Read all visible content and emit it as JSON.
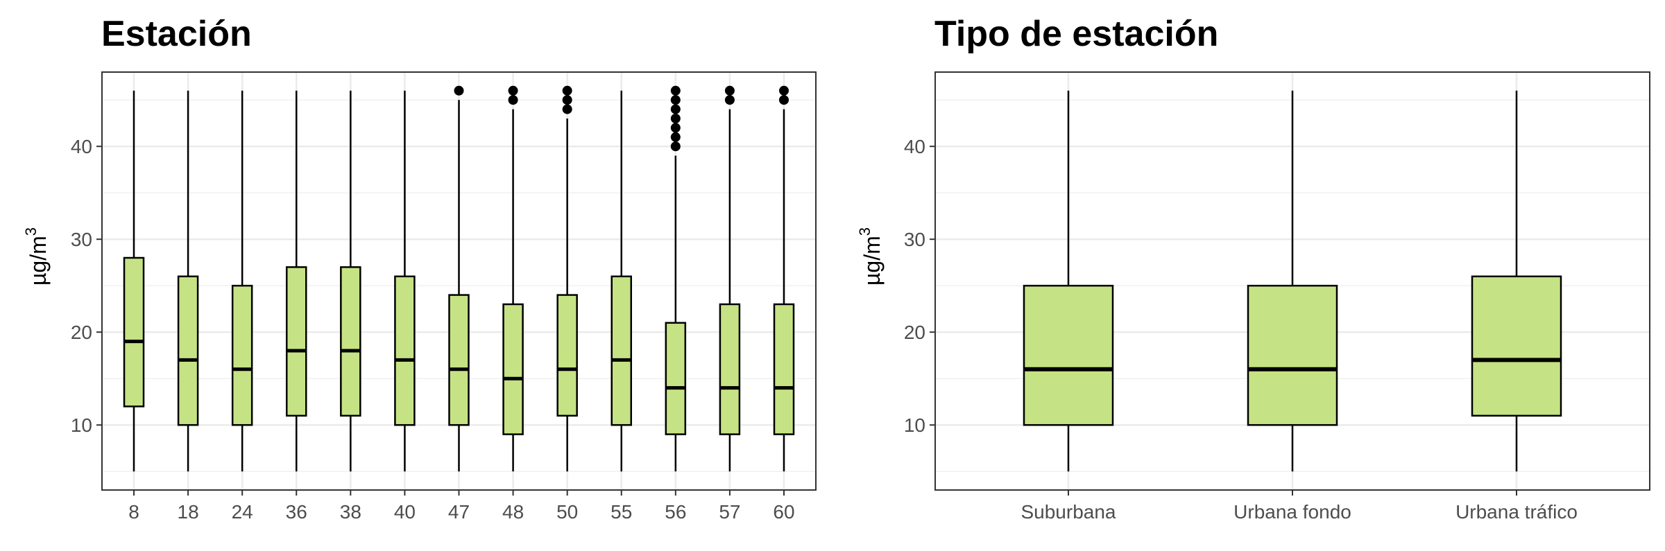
{
  "chart_data": [
    {
      "type": "boxplot",
      "title": "Estación",
      "xlabel": "",
      "ylabel": "µg/m",
      "ylabel_superscript": "3",
      "ylim": [
        3,
        48
      ],
      "yticks": [
        10,
        20,
        30,
        40
      ],
      "grid": true,
      "fill_color": "#c5e384",
      "categories": [
        "8",
        "18",
        "24",
        "36",
        "38",
        "40",
        "47",
        "48",
        "50",
        "55",
        "56",
        "57",
        "60"
      ],
      "boxes": [
        {
          "min": 5,
          "q1": 12,
          "median": 19,
          "q3": 28,
          "max": 46,
          "outliers": []
        },
        {
          "min": 5,
          "q1": 10,
          "median": 17,
          "q3": 26,
          "max": 46,
          "outliers": []
        },
        {
          "min": 5,
          "q1": 10,
          "median": 16,
          "q3": 25,
          "max": 46,
          "outliers": []
        },
        {
          "min": 5,
          "q1": 11,
          "median": 18,
          "q3": 27,
          "max": 46,
          "outliers": []
        },
        {
          "min": 5,
          "q1": 11,
          "median": 18,
          "q3": 27,
          "max": 46,
          "outliers": []
        },
        {
          "min": 5,
          "q1": 10,
          "median": 17,
          "q3": 26,
          "max": 46,
          "outliers": []
        },
        {
          "min": 5,
          "q1": 10,
          "median": 16,
          "q3": 24,
          "max": 45,
          "outliers": [
            46
          ]
        },
        {
          "min": 5,
          "q1": 9,
          "median": 15,
          "q3": 23,
          "max": 44,
          "outliers": [
            45,
            46
          ]
        },
        {
          "min": 5,
          "q1": 11,
          "median": 16,
          "q3": 24,
          "max": 43,
          "outliers": [
            44,
            45,
            46
          ]
        },
        {
          "min": 5,
          "q1": 10,
          "median": 17,
          "q3": 26,
          "max": 46,
          "outliers": []
        },
        {
          "min": 5,
          "q1": 9,
          "median": 14,
          "q3": 21,
          "max": 39,
          "outliers": [
            40,
            41,
            42,
            43,
            44,
            45,
            46
          ]
        },
        {
          "min": 5,
          "q1": 9,
          "median": 14,
          "q3": 23,
          "max": 44,
          "outliers": [
            45,
            46
          ]
        },
        {
          "min": 5,
          "q1": 9,
          "median": 14,
          "q3": 23,
          "max": 44,
          "outliers": [
            45,
            46
          ]
        }
      ]
    },
    {
      "type": "boxplot",
      "title": "Tipo de estación",
      "xlabel": "",
      "ylabel": "µg/m",
      "ylabel_superscript": "3",
      "ylim": [
        3,
        48
      ],
      "yticks": [
        10,
        20,
        30,
        40
      ],
      "grid": true,
      "fill_color": "#c5e384",
      "categories": [
        "Suburbana",
        "Urbana fondo",
        "Urbana tráfico"
      ],
      "boxes": [
        {
          "min": 5,
          "q1": 10,
          "median": 16,
          "q3": 25,
          "max": 46,
          "outliers": []
        },
        {
          "min": 5,
          "q1": 10,
          "median": 16,
          "q3": 25,
          "max": 46,
          "outliers": []
        },
        {
          "min": 5,
          "q1": 11,
          "median": 17,
          "q3": 26,
          "max": 46,
          "outliers": []
        }
      ]
    }
  ]
}
